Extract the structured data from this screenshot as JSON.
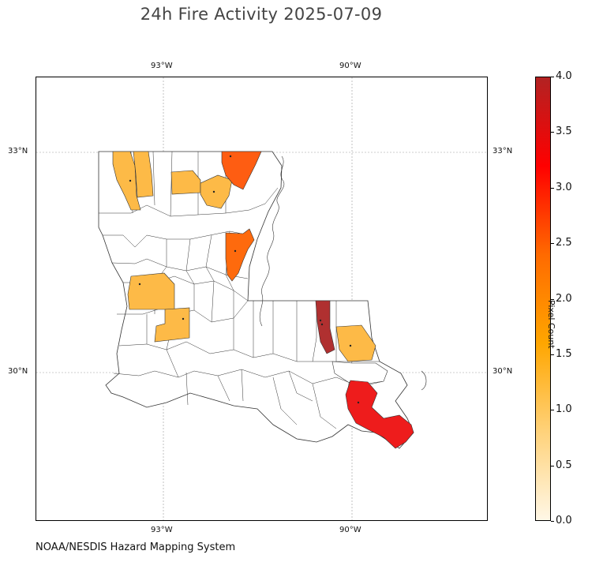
{
  "title": "24h Fire Activity 2025-07-09",
  "footer": "NOAA/NESDIS Hazard Mapping System",
  "map": {
    "region": "Louisiana parishes",
    "gridlines": true,
    "lon_ticks_top": [
      "93°W",
      "90°W"
    ],
    "lon_ticks_bottom": [
      "93°W",
      "90°W"
    ],
    "lat_ticks_left": [
      "33°N",
      "30°N"
    ],
    "lat_ticks_right": [
      "33°N",
      "30°N"
    ],
    "parish_outline_color": "#333333",
    "unfilled_color": "#ffffff"
  },
  "colorbar": {
    "label": "Pixel Count",
    "ticks": [
      "0.0",
      "0.5",
      "1.0",
      "1.5",
      "2.0",
      "2.5",
      "3.0",
      "3.5",
      "4.0"
    ],
    "range": [
      0,
      4
    ],
    "colors": [
      "#fff7e6",
      "#ffd27a",
      "#ffa600",
      "#ff6a00",
      "#ff0000",
      "#b22222"
    ]
  },
  "chart_data": {
    "type": "choropleth",
    "title": "24h Fire Activity 2025-07-09",
    "value_label": "Pixel Count",
    "range": [
      0,
      4
    ],
    "regions": [
      {
        "value": 1,
        "color": "#fdba47"
      },
      {
        "value": 1,
        "color": "#fdba47"
      },
      {
        "value": 1,
        "color": "#fdba47"
      },
      {
        "value": 1,
        "color": "#fdba47"
      },
      {
        "value": 2,
        "color": "#fe5d12"
      },
      {
        "value": 2,
        "color": "#fe6a0d"
      },
      {
        "value": 1,
        "color": "#fdba47"
      },
      {
        "value": 1,
        "color": "#fdba47"
      },
      {
        "value": 4,
        "color": "#b03030"
      },
      {
        "value": 1,
        "color": "#fdba47"
      },
      {
        "value": 3,
        "color": "#ee1c1c"
      }
    ]
  }
}
